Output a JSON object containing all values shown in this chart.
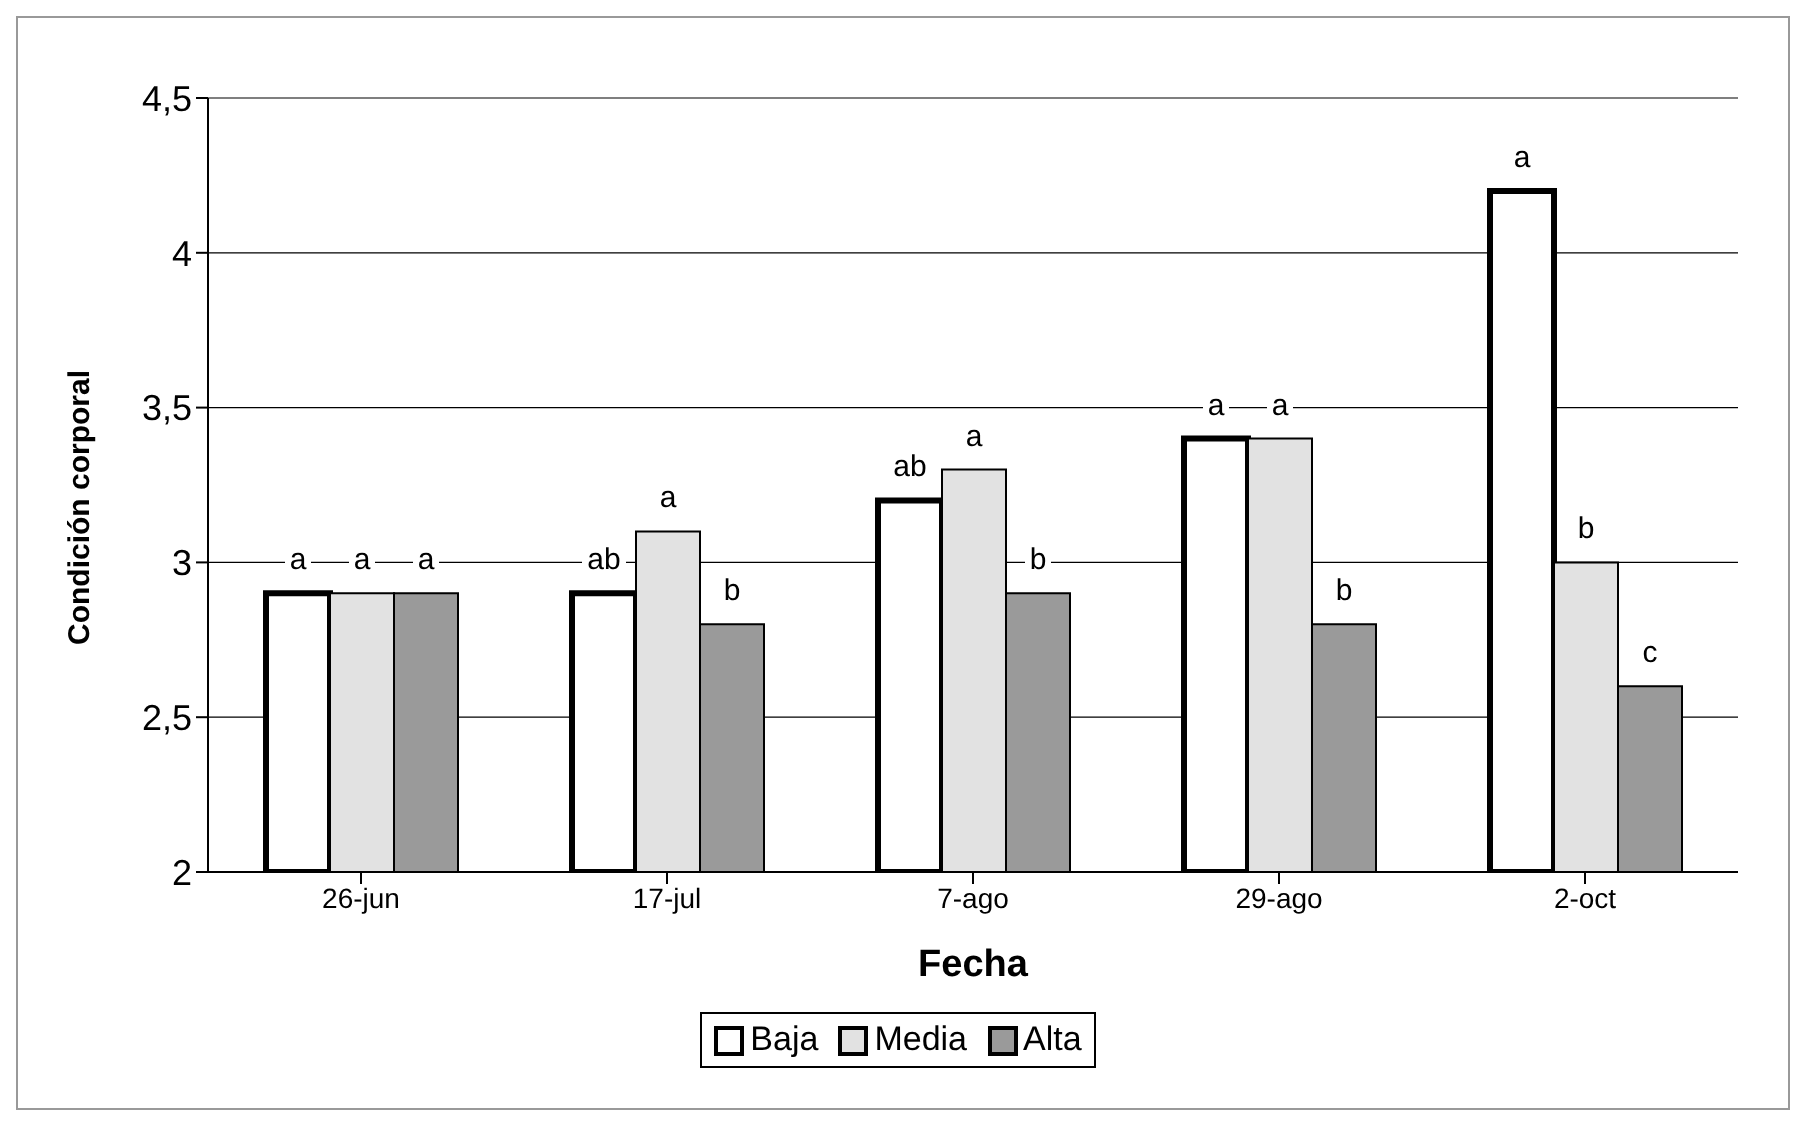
{
  "chart_data": {
    "type": "bar",
    "xlabel": "Fecha",
    "ylabel": "Condición corporal",
    "categories": [
      "26-jun",
      "17-jul",
      "7-ago",
      "29-ago",
      "2-oct"
    ],
    "series": [
      {
        "name": "Baja",
        "color": "#ffffff",
        "values": [
          2.9,
          2.9,
          3.2,
          3.4,
          4.2
        ]
      },
      {
        "name": "Media",
        "color": "#e2e2e2",
        "values": [
          2.9,
          3.1,
          3.3,
          3.4,
          3.0
        ]
      },
      {
        "name": "Alta",
        "color": "#9a9a9a",
        "values": [
          2.9,
          2.8,
          2.9,
          2.8,
          2.6
        ]
      }
    ],
    "ylim": [
      2,
      4.5
    ],
    "yticks": [
      2,
      {
        "value": 2.5,
        "label": "2,5"
      },
      3,
      {
        "value": 3.5,
        "label": "3,5"
      },
      4,
      {
        "value": 4.5,
        "label": "4,5"
      }
    ],
    "grid": "y",
    "legend": "bottom",
    "annotations": [
      "a",
      "a",
      "a",
      "ab",
      "a",
      "b",
      "ab",
      "a",
      "b",
      "a",
      "a",
      "b",
      "a",
      "b",
      "c"
    ]
  }
}
